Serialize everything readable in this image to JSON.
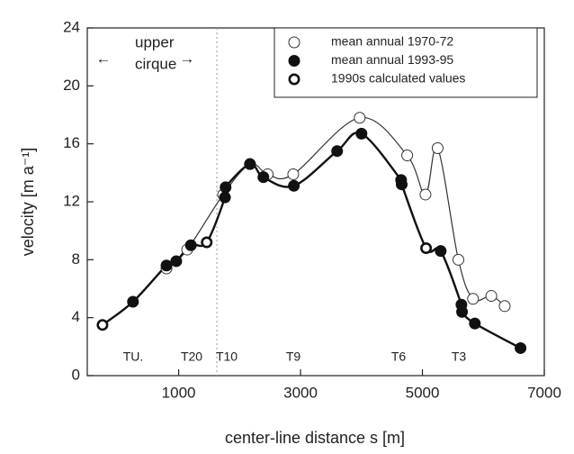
{
  "chart_data": {
    "type": "scatter",
    "xlabel": "center-line distance s [m]",
    "ylabel": "velocity [m a⁻¹]",
    "xlim": [
      -500,
      7000
    ],
    "xticks": [
      1000,
      3000,
      5000,
      7000
    ],
    "ylim": [
      0,
      24
    ],
    "yticks": [
      0,
      4,
      8,
      12,
      16,
      20,
      24
    ],
    "annotations": [
      "upper",
      "cirque",
      "←",
      "→",
      "TU.",
      "T20",
      "T10",
      "T9",
      "T6",
      "T3"
    ],
    "legend": "upper right",
    "series": [
      {
        "name": "mean annual 1970-72",
        "color": "#333333",
        "marker": "open",
        "x": [
          800,
          1140,
          1730,
          2170,
          2460,
          2880,
          3970,
          4750,
          5050,
          5250,
          5590,
          5830,
          6130,
          6350
        ],
        "values": [
          7.4,
          8.7,
          12.5,
          14.6,
          13.9,
          13.9,
          17.8,
          15.2,
          12.5,
          15.7,
          8.0,
          5.3,
          5.5,
          4.8
        ]
      },
      {
        "name": "mean annual 1993-95",
        "color": "#111111",
        "marker": "filled",
        "x": [
          250,
          800,
          960,
          1200,
          1760,
          1770,
          2170,
          2390,
          2890,
          3600,
          4000,
          4650,
          4660,
          5300,
          5640,
          5650,
          5860,
          6610
        ],
        "values": [
          5.1,
          7.6,
          7.9,
          9.0,
          12.3,
          13.0,
          14.6,
          13.7,
          13.1,
          15.5,
          16.7,
          13.5,
          13.2,
          8.6,
          4.9,
          4.4,
          3.6,
          1.9
        ]
      },
      {
        "name": "1990s calculated values",
        "color": "#111111",
        "marker": "bold-open",
        "x": [
          -250,
          1460,
          5060
        ],
        "values": [
          3.5,
          9.2,
          8.8
        ]
      }
    ]
  }
}
